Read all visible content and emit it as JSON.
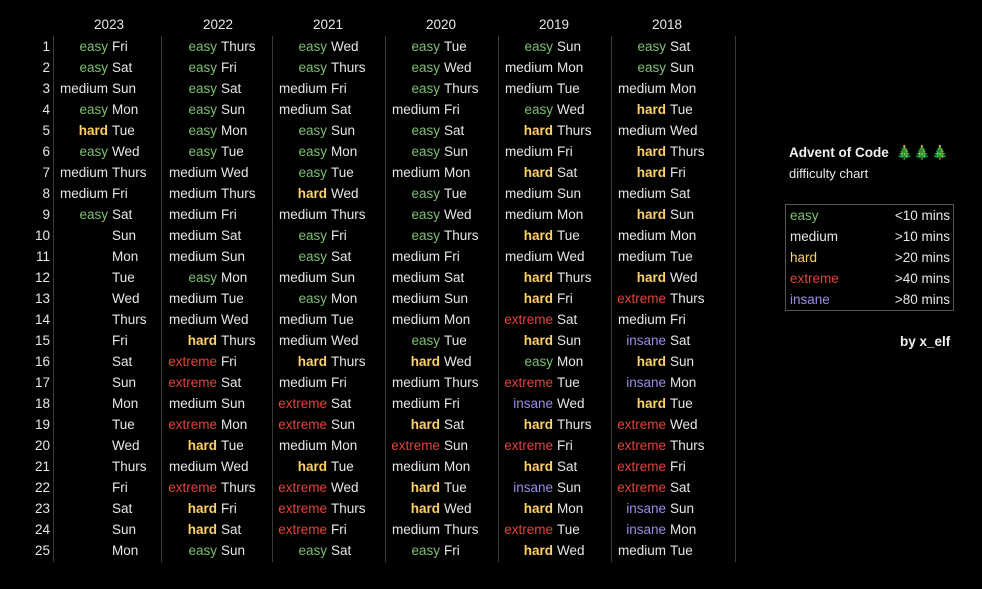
{
  "years": [
    "2023",
    "2022",
    "2021",
    "2020",
    "2019",
    "2018"
  ],
  "rows": [
    [
      "easy",
      "Fri",
      "easy",
      "Thurs",
      "easy",
      "Wed",
      "easy",
      "Tue",
      "easy",
      "Sun",
      "easy",
      "Sat"
    ],
    [
      "easy",
      "Sat",
      "easy",
      "Fri",
      "easy",
      "Thurs",
      "easy",
      "Wed",
      "medium",
      "Mon",
      "easy",
      "Sun"
    ],
    [
      "medium",
      "Sun",
      "easy",
      "Sat",
      "medium",
      "Fri",
      "easy",
      "Thurs",
      "medium",
      "Tue",
      "medium",
      "Mon"
    ],
    [
      "easy",
      "Mon",
      "easy",
      "Sun",
      "medium",
      "Sat",
      "medium",
      "Fri",
      "easy",
      "Wed",
      "hard",
      "Tue"
    ],
    [
      "hard",
      "Tue",
      "easy",
      "Mon",
      "easy",
      "Sun",
      "easy",
      "Sat",
      "hard",
      "Thurs",
      "medium",
      "Wed"
    ],
    [
      "easy",
      "Wed",
      "easy",
      "Tue",
      "easy",
      "Mon",
      "easy",
      "Sun",
      "medium",
      "Fri",
      "hard",
      "Thurs"
    ],
    [
      "medium",
      "Thurs",
      "medium",
      "Wed",
      "easy",
      "Tue",
      "medium",
      "Mon",
      "hard",
      "Sat",
      "hard",
      "Fri"
    ],
    [
      "medium",
      "Fri",
      "medium",
      "Thurs",
      "hard",
      "Wed",
      "easy",
      "Tue",
      "medium",
      "Sun",
      "medium",
      "Sat"
    ],
    [
      "easy",
      "Sat",
      "medium",
      "Fri",
      "medium",
      "Thurs",
      "easy",
      "Wed",
      "medium",
      "Mon",
      "hard",
      "Sun"
    ],
    [
      "",
      "Sun",
      "medium",
      "Sat",
      "easy",
      "Fri",
      "easy",
      "Thurs",
      "hard",
      "Tue",
      "medium",
      "Mon"
    ],
    [
      "",
      "Mon",
      "medium",
      "Sun",
      "easy",
      "Sat",
      "medium",
      "Fri",
      "medium",
      "Wed",
      "medium",
      "Tue"
    ],
    [
      "",
      "Tue",
      "easy",
      "Mon",
      "medium",
      "Sun",
      "medium",
      "Sat",
      "hard",
      "Thurs",
      "hard",
      "Wed"
    ],
    [
      "",
      "Wed",
      "medium",
      "Tue",
      "easy",
      "Mon",
      "medium",
      "Sun",
      "hard",
      "Fri",
      "extreme",
      "Thurs"
    ],
    [
      "",
      "Thurs",
      "medium",
      "Wed",
      "medium",
      "Tue",
      "medium",
      "Mon",
      "extreme",
      "Sat",
      "medium",
      "Fri"
    ],
    [
      "",
      "Fri",
      "hard",
      "Thurs",
      "medium",
      "Wed",
      "easy",
      "Tue",
      "hard",
      "Sun",
      "insane",
      "Sat"
    ],
    [
      "",
      "Sat",
      "extreme",
      "Fri",
      "hard",
      "Thurs",
      "hard",
      "Wed",
      "easy",
      "Mon",
      "hard",
      "Sun"
    ],
    [
      "",
      "Sun",
      "extreme",
      "Sat",
      "medium",
      "Fri",
      "medium",
      "Thurs",
      "extreme",
      "Tue",
      "insane",
      "Mon"
    ],
    [
      "",
      "Mon",
      "medium",
      "Sun",
      "extreme",
      "Sat",
      "medium",
      "Fri",
      "insane",
      "Wed",
      "hard",
      "Tue"
    ],
    [
      "",
      "Tue",
      "extreme",
      "Mon",
      "extreme",
      "Sun",
      "hard",
      "Sat",
      "hard",
      "Thurs",
      "extreme",
      "Wed"
    ],
    [
      "",
      "Wed",
      "hard",
      "Tue",
      "medium",
      "Mon",
      "extreme",
      "Sun",
      "extreme",
      "Fri",
      "extreme",
      "Thurs"
    ],
    [
      "",
      "Thurs",
      "medium",
      "Wed",
      "hard",
      "Tue",
      "medium",
      "Mon",
      "hard",
      "Sat",
      "extreme",
      "Fri"
    ],
    [
      "",
      "Fri",
      "extreme",
      "Thurs",
      "extreme",
      "Wed",
      "hard",
      "Tue",
      "insane",
      "Sun",
      "extreme",
      "Sat"
    ],
    [
      "",
      "Sat",
      "hard",
      "Fri",
      "extreme",
      "Thurs",
      "hard",
      "Wed",
      "hard",
      "Mon",
      "insane",
      "Sun"
    ],
    [
      "",
      "Sun",
      "hard",
      "Sat",
      "extreme",
      "Fri",
      "medium",
      "Thurs",
      "extreme",
      "Tue",
      "insane",
      "Mon"
    ],
    [
      "",
      "Mon",
      "easy",
      "Sun",
      "easy",
      "Sat",
      "easy",
      "Fri",
      "hard",
      "Wed",
      "medium",
      "Tue"
    ]
  ],
  "panel": {
    "title": "Advent of Code",
    "tree_icon": "🎄🎄🎄",
    "subtitle": "difficulty chart",
    "legend": [
      {
        "name": "easy",
        "value": "<10 mins",
        "color": "#7dbf72"
      },
      {
        "name": "medium",
        "value": ">10 mins",
        "color": "#e6e6e6"
      },
      {
        "name": "hard",
        "value": ">20 mins",
        "color": "#ffd166"
      },
      {
        "name": "extreme",
        "value": ">40 mins",
        "color": "#e0443a"
      },
      {
        "name": "insane",
        "value": ">80 mins",
        "color": "#9b8de6"
      }
    ],
    "byline": "by x_elf"
  }
}
